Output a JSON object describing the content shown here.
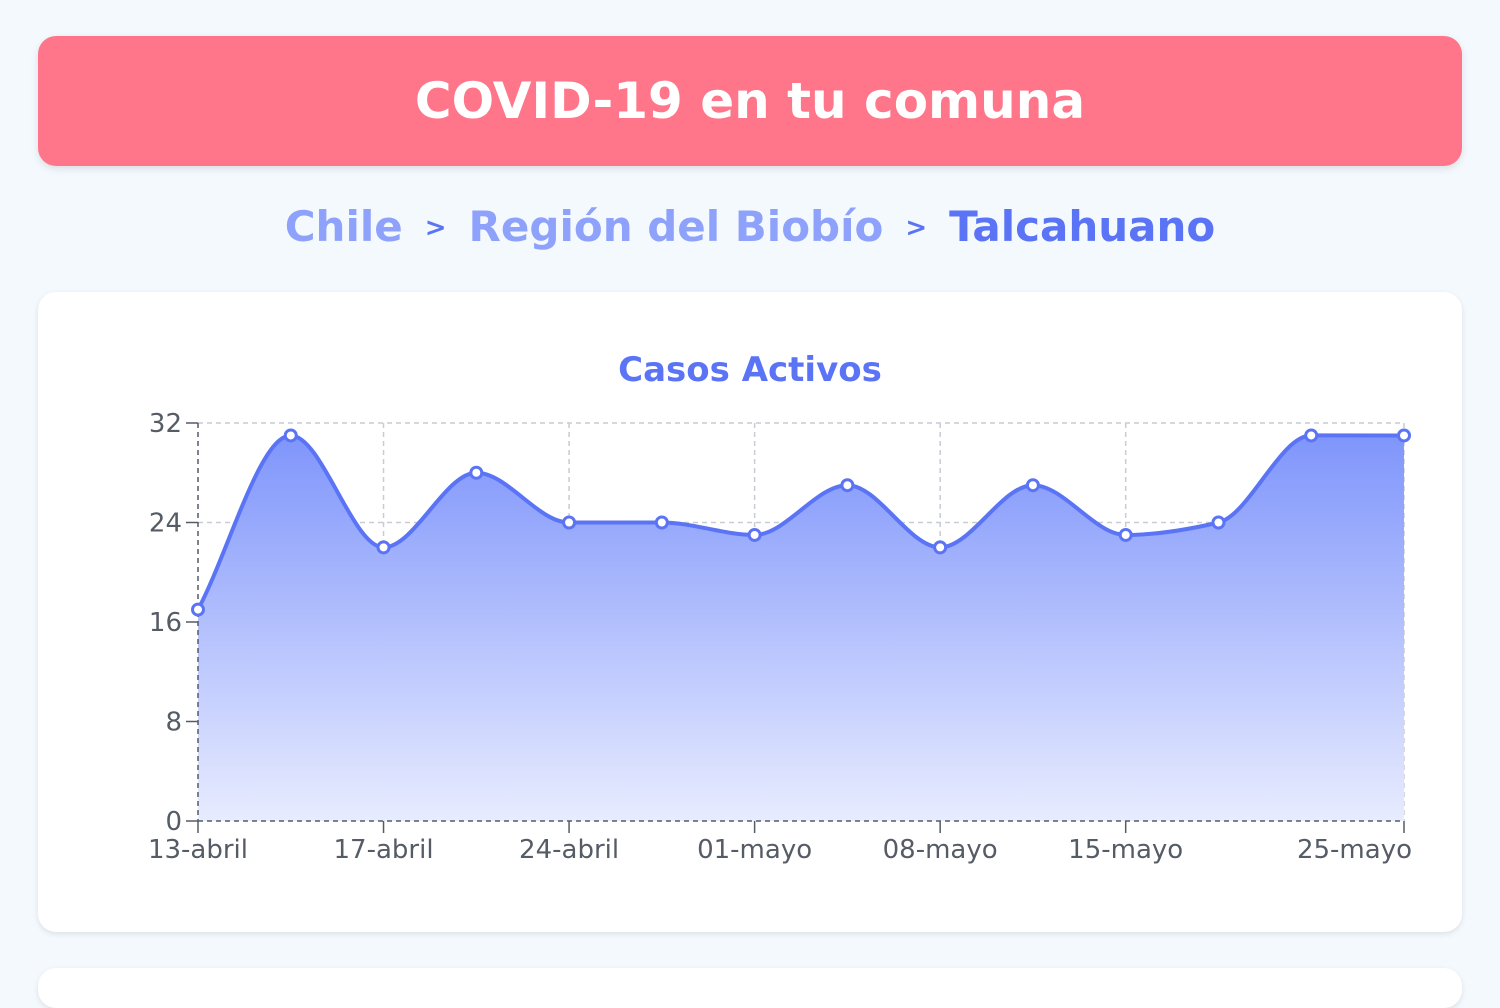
{
  "header": {
    "title": "COVID-19 en tu comuna"
  },
  "breadcrumb": {
    "items": [
      "Chile",
      "Región del Biobío",
      "Talcahuano"
    ],
    "separator": ">"
  },
  "colors": {
    "banner": "#ff7589",
    "accent": "#5a74f5",
    "breadcrumb_link": "#8fa2fb",
    "area_top": "#7f95fb",
    "area_bottom": "#e8ecff"
  },
  "chart_data": {
    "type": "area",
    "title": "Casos Activos",
    "xlabel": "",
    "ylabel": "",
    "x_range": [
      0,
      13
    ],
    "ylim": [
      0,
      32
    ],
    "yticks": [
      0,
      8,
      16,
      24,
      32
    ],
    "xticks": [
      {
        "pos": 0,
        "label": "13-abril"
      },
      {
        "pos": 2,
        "label": "17-abril"
      },
      {
        "pos": 4,
        "label": "24-abril"
      },
      {
        "pos": 6,
        "label": "01-mayo"
      },
      {
        "pos": 8,
        "label": "08-mayo"
      },
      {
        "pos": 10,
        "label": "15-mayo"
      },
      {
        "pos": 13,
        "label": "25-mayo"
      }
    ],
    "series": [
      {
        "name": "Casos Activos",
        "x": [
          0,
          1,
          2,
          3,
          4,
          5,
          6,
          7,
          8,
          9,
          10,
          11,
          12,
          13
        ],
        "values": [
          17,
          31,
          22,
          28,
          24,
          24,
          23,
          27,
          22,
          27,
          23,
          24,
          31,
          31
        ]
      }
    ],
    "grid": true
  }
}
